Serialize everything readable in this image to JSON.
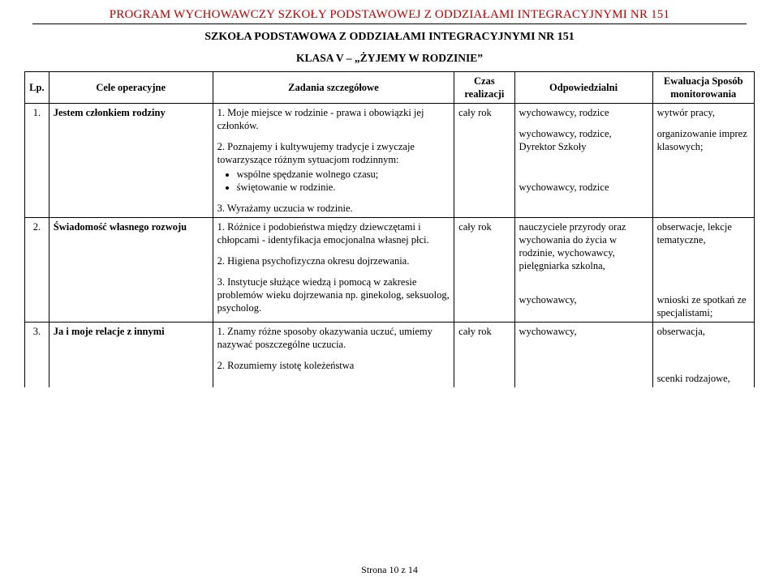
{
  "header": {
    "title": "PROGRAM WYCHOWAWCZY SZKOŁY PODSTAWOWEJ Z ODDZIAŁAMI INTEGRACYJNYMI NR 151",
    "subtitle": "SZKOŁA  PODSTAWOWA  Z ODDZIAŁAMI  INTEGRACYJNYMI NR  151",
    "class_line": "KLASA V – „ŻYJEMY W RODZINIE”"
  },
  "columns": {
    "lp": "Lp.",
    "cele": "Cele operacyjne",
    "zadania": "Zadania szczegółowe",
    "czas": "Czas realizacji",
    "odpowiedzialni": "Odpowiedzialni",
    "ewaluacja": "Ewaluacja Sposób monitorowania"
  },
  "rows": [
    {
      "lp": "1.",
      "cele": "Jestem członkiem rodziny",
      "tasks": {
        "t1": "1.  Moje miejsce w rodzinie - prawa i obowiązki jej członków.",
        "t2_intro": "2.  Poznajemy i kultywujemy tradycje i zwyczaje towarzyszące różnym sytuacjom rodzinnym:",
        "t2_b1": "wspólne spędzanie wolnego czasu;",
        "t2_b2": "świętowanie w rodzinie.",
        "t3": "3.  Wyrażamy uczucia w rodzinie."
      },
      "czas": "cały rok",
      "resp": {
        "r1": "wychowawcy, rodzice",
        "r2": "wychowawcy, rodzice, Dyrektor Szkoły",
        "r3": "wychowawcy, rodzice"
      },
      "eval": {
        "e1": "wytwór pracy,",
        "e2": "organizowanie imprez klasowych;"
      }
    },
    {
      "lp": "2.",
      "cele": "Świadomość własnego rozwoju",
      "tasks": {
        "t1": "1.  Różnice i podobieństwa między dziewczętami i chłopcami - identyfikacja emocjonalna własnej płci.",
        "t2": "2.  Higiena psychofizyczna okresu dojrzewania.",
        "t3": "3.  Instytucje służące wiedzą i pomocą w zakresie problemów wieku dojrzewania np. ginekolog, seksuolog, psycholog."
      },
      "czas": "cały rok",
      "resp": {
        "r1": "nauczyciele przyrody oraz wychowania do życia w rodzinie, wychowawcy, pielęgniarka szkolna,",
        "r2": "wychowawcy,"
      },
      "eval": {
        "e1": "obserwacje, lekcje tematyczne,",
        "e2": "wnioski ze spotkań ze specjalistami;"
      }
    },
    {
      "lp": "3.",
      "cele": "Ja i moje relacje z innymi",
      "tasks": {
        "t1": "1.  Znamy różne sposoby okazywania uczuć, umiemy nazywać poszczególne uczucia.",
        "t2": "2.  Rozumiemy istotę koleżeństwa"
      },
      "czas": "cały rok",
      "resp": {
        "r1": "wychowawcy,"
      },
      "eval": {
        "e1": "obserwacja,",
        "e2": "scenki rodzajowe,"
      }
    }
  ],
  "footer": {
    "page": "Strona 10 z 14"
  }
}
